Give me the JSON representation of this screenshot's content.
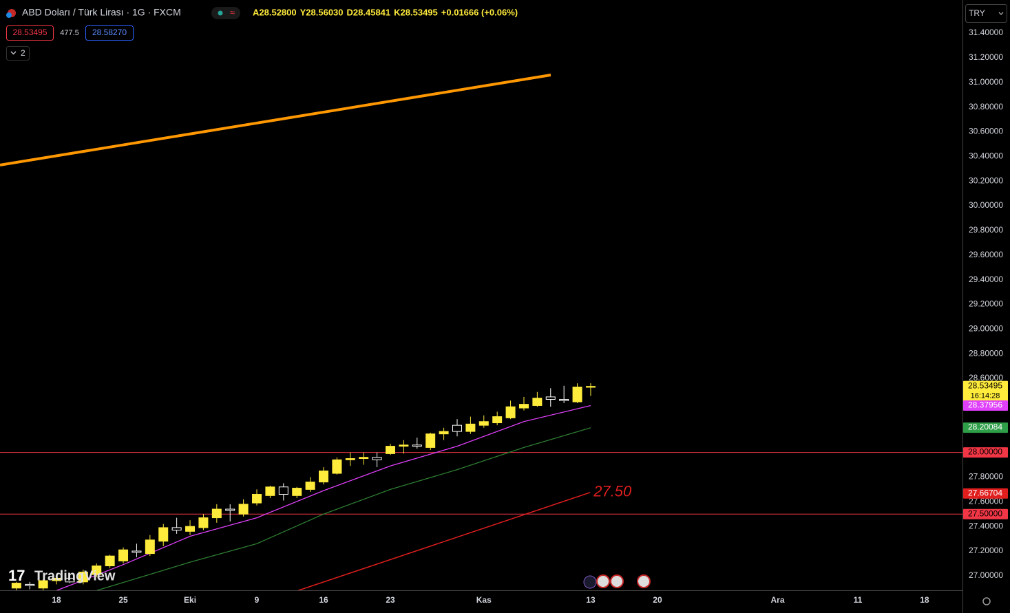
{
  "header": {
    "symbol": "ABD Doları / Türk Lirası · 1G · FXCM",
    "ohlc": [
      "A28.52800",
      "Y28.56030",
      "D28.45841",
      "K28.53495"
    ],
    "change": "+0.01666 (+0.06%)",
    "sell": "28.53495",
    "spread": "477.5",
    "buy": "28.58270",
    "indicators": "2",
    "currency": "TRY",
    "logo": "TradingView"
  },
  "chart_data": {
    "type": "candlestick",
    "xlim": [
      -4.23,
      67.84
    ],
    "xticks": [
      {
        "value": 0,
        "label": "18"
      },
      {
        "value": 5,
        "label": "25"
      },
      {
        "value": 10,
        "label": "Eki"
      },
      {
        "value": 15,
        "label": "9"
      },
      {
        "value": 20,
        "label": "16"
      },
      {
        "value": 25,
        "label": "23"
      },
      {
        "value": 32,
        "label": "Kas"
      },
      {
        "value": 40,
        "label": "13"
      },
      {
        "value": 45,
        "label": "20"
      },
      {
        "value": 54,
        "label": "Ara"
      },
      {
        "value": 60,
        "label": "11"
      },
      {
        "value": 65,
        "label": "18"
      }
    ],
    "ylim": [
      26.882,
      31.668
    ],
    "yticks": [
      {
        "value": 27.0,
        "label": "27.00000"
      },
      {
        "value": 27.2,
        "label": "27.20000"
      },
      {
        "value": 27.4,
        "label": "27.40000"
      },
      {
        "value": 27.6,
        "label": "27.60000"
      },
      {
        "value": 27.8,
        "label": "27.80000"
      },
      {
        "value": 28.0,
        "label": "28.00000"
      },
      {
        "value": 28.2,
        "label": "28.20000"
      },
      {
        "value": 28.4,
        "label": "28.40000"
      },
      {
        "value": 28.6,
        "label": "28.60000"
      },
      {
        "value": 28.8,
        "label": "28.80000"
      },
      {
        "value": 29.0,
        "label": "29.00000"
      },
      {
        "value": 29.2,
        "label": "29.20000"
      },
      {
        "value": 29.4,
        "label": "29.40000"
      },
      {
        "value": 29.6,
        "label": "29.60000"
      },
      {
        "value": 29.8,
        "label": "29.80000"
      },
      {
        "value": 30.0,
        "label": "30.00000"
      },
      {
        "value": 30.2,
        "label": "30.20000"
      },
      {
        "value": 30.4,
        "label": "30.40000"
      },
      {
        "value": 30.6,
        "label": "30.60000"
      },
      {
        "value": 30.8,
        "label": "30.80000"
      },
      {
        "value": 31.0,
        "label": "31.00000"
      },
      {
        "value": 31.2,
        "label": "31.20000"
      },
      {
        "value": 31.4,
        "label": "31.40000"
      }
    ],
    "grid": false,
    "up_color": "#ffeb3b",
    "down_color": "#ffffff",
    "candles": {
      "x": [
        -3,
        -2,
        -1,
        0,
        1,
        2,
        3,
        4,
        5,
        6,
        7,
        8,
        9,
        10,
        11,
        12,
        13,
        14,
        15,
        16,
        17,
        18,
        19,
        20,
        21,
        22,
        23,
        24,
        25,
        26,
        27,
        28,
        29,
        30,
        31,
        32,
        33,
        34,
        35,
        36,
        37,
        38,
        39,
        40
      ],
      "open": [
        26.9,
        26.93,
        26.9,
        26.96,
        26.98,
        26.95,
        27.01,
        27.08,
        27.12,
        27.2,
        27.18,
        27.28,
        27.39,
        27.36,
        27.39,
        27.47,
        27.54,
        27.5,
        27.59,
        27.65,
        27.72,
        27.65,
        27.7,
        27.76,
        27.83,
        27.94,
        27.95,
        27.96,
        27.99,
        28.05,
        28.06,
        28.04,
        28.15,
        28.22,
        28.17,
        28.22,
        28.24,
        28.28,
        28.36,
        28.38,
        28.45,
        28.43,
        28.41,
        28.528
      ],
      "high": [
        26.95,
        26.95,
        26.97,
        27.0,
        27.02,
        27.05,
        27.1,
        27.17,
        27.23,
        27.26,
        27.33,
        27.42,
        27.47,
        27.45,
        27.5,
        27.58,
        27.58,
        27.62,
        27.7,
        27.73,
        27.75,
        27.72,
        27.8,
        27.88,
        27.96,
        28.0,
        28.0,
        28.0,
        28.07,
        28.1,
        28.12,
        28.16,
        28.2,
        28.27,
        28.29,
        28.3,
        28.33,
        28.42,
        28.45,
        28.49,
        28.52,
        28.54,
        28.56,
        28.5603
      ],
      "low": [
        26.88,
        26.89,
        26.88,
        26.93,
        26.94,
        26.93,
        26.99,
        27.06,
        27.1,
        27.15,
        27.16,
        27.24,
        27.34,
        27.33,
        27.37,
        27.43,
        27.44,
        27.48,
        27.57,
        27.63,
        27.61,
        27.63,
        27.68,
        27.74,
        27.82,
        27.89,
        27.9,
        27.88,
        27.98,
        27.99,
        28.03,
        28.02,
        28.1,
        28.13,
        28.15,
        28.2,
        28.22,
        28.27,
        28.34,
        28.37,
        28.37,
        28.4,
        28.4,
        28.45841
      ],
      "close": [
        26.94,
        26.92,
        26.96,
        26.98,
        26.95,
        27.03,
        27.08,
        27.16,
        27.21,
        27.19,
        27.29,
        27.39,
        27.37,
        27.4,
        27.47,
        27.54,
        27.53,
        27.58,
        27.66,
        27.72,
        27.66,
        27.71,
        27.76,
        27.85,
        27.94,
        27.95,
        27.96,
        27.94,
        28.05,
        28.06,
        28.05,
        28.15,
        28.17,
        28.17,
        28.23,
        28.25,
        28.29,
        28.37,
        28.39,
        28.44,
        28.43,
        28.42,
        28.53,
        28.53495
      ]
    },
    "moving_averages": [
      {
        "color": "#e040fb",
        "x": [
          0,
          5,
          10,
          15,
          20,
          25,
          30,
          35,
          40
        ],
        "values": [
          26.88,
          27.09,
          27.32,
          27.47,
          27.69,
          27.89,
          28.05,
          28.25,
          28.38
        ]
      },
      {
        "color": "#2e7d32",
        "x": [
          3,
          10,
          15,
          20,
          25,
          30,
          35,
          40
        ],
        "values": [
          26.88,
          27.11,
          27.26,
          27.5,
          27.7,
          27.86,
          28.04,
          28.2
        ]
      }
    ],
    "hlines": [
      {
        "value": 28.0,
        "color": "#f23645"
      },
      {
        "value": 27.5,
        "color": "#f23645"
      }
    ],
    "trend_lines": [
      {
        "color": "#ff9800",
        "x": [
          -4.23,
          37.01
        ],
        "values": [
          30.33,
          31.06
        ]
      },
      {
        "color": "#e01e1e",
        "x": [
          18.09,
          39.96
        ],
        "values": [
          26.88,
          27.675
        ],
        "annotation": "27.50"
      }
    ],
    "price_labels": [
      {
        "value": 28.53495,
        "label": "28.53495",
        "sublabel": "16:14:28",
        "color": "#ffeb3b",
        "text_color": "#000000"
      },
      {
        "value": 28.37956,
        "label": "28.37956",
        "color": "#e040fb",
        "text_color": "#ffffff"
      },
      {
        "value": 28.20084,
        "label": "28.20084",
        "color": "#2e9e48",
        "text_color": "#ffffff"
      },
      {
        "value": 28.0,
        "label": "28.00000",
        "color": "#f23645",
        "text_color": "#000000"
      },
      {
        "value": 27.66704,
        "label": "27.66704",
        "color": "#e01e1e",
        "text_color": "#ffffff"
      },
      {
        "value": 27.5,
        "label": "27.50000",
        "color": "#f23645",
        "text_color": "#000000"
      }
    ]
  }
}
